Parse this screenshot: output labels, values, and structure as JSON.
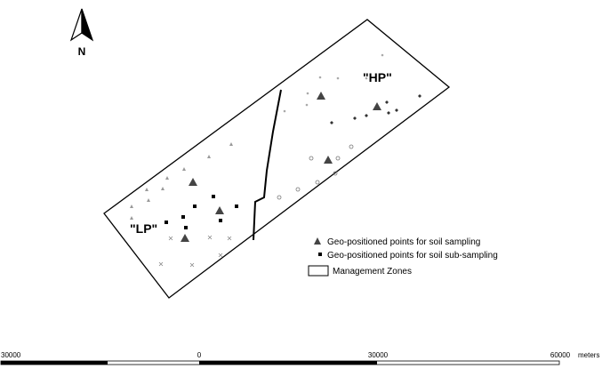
{
  "north_arrow": {
    "label": "N"
  },
  "zones": {
    "hp": "\"HP\"",
    "lp": "\"LP\""
  },
  "legend": [
    "Geo-positioned points for soil sampling",
    "Geo-positioned points for soil sub-sampling",
    "Management Zones"
  ],
  "scale_bar": {
    "labels": [
      30000,
      0,
      30000,
      60000
    ],
    "unit": "meters"
  }
}
